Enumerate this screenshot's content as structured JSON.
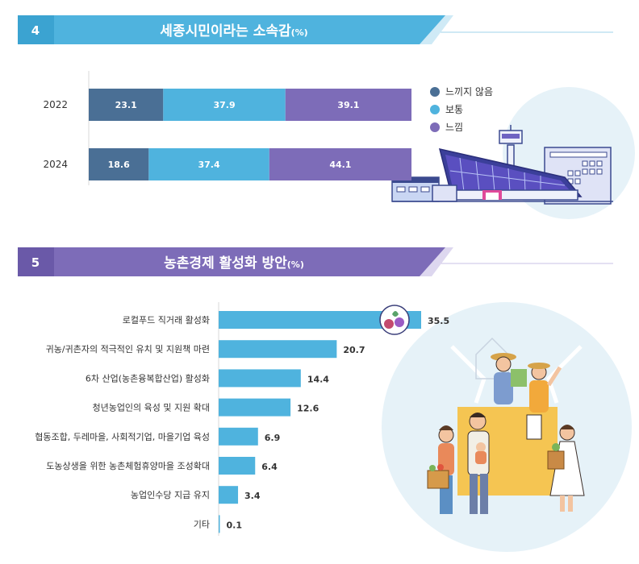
{
  "section4": {
    "number": "4",
    "title": "세종시민이라는 소속감",
    "unit": "(%)"
  },
  "section5": {
    "number": "5",
    "title": "농촌경제 활성화 방안",
    "unit": "(%)"
  },
  "colors": {
    "header4": "#4fb3de",
    "header5": "#7d6cb8",
    "not_feel": "#4a6f95",
    "normal": "#4fb3de",
    "feel": "#7d6cb8",
    "bar5": "#4fb3de"
  },
  "chart_data": [
    {
      "type": "bar",
      "orientation": "horizontal",
      "stacked": true,
      "categories": [
        "2022",
        "2024"
      ],
      "series": [
        {
          "name": "느끼지 않음",
          "color": "#4a6f95",
          "values": [
            23.1,
            18.6
          ]
        },
        {
          "name": "보통",
          "color": "#4fb3de",
          "values": [
            37.9,
            37.4
          ]
        },
        {
          "name": "느낌",
          "color": "#7d6cb8",
          "values": [
            39.1,
            44.1
          ]
        }
      ],
      "xlim": [
        0,
        100.1
      ],
      "legend": "right",
      "grid": false
    },
    {
      "type": "bar",
      "orientation": "horizontal",
      "categories": [
        "로컬푸드 직거래 활성화",
        "귀농/귀촌자의 적극적인 유치 및 지원책 마련",
        "6차 산업(농촌융복합산업) 활성화",
        "청년농업인의 육성 및 지원 확대",
        "협동조합, 두레마을, 사회적기업, 마을기업 육성",
        "도농상생을 위한 농촌체험휴양마을 조성확대",
        "농업인수당 지급 유지",
        "기타"
      ],
      "values": [
        35.5,
        20.7,
        14.4,
        12.6,
        6.9,
        6.4,
        3.4,
        0.1
      ],
      "xlim": [
        0,
        35.5
      ],
      "grid": false
    }
  ]
}
